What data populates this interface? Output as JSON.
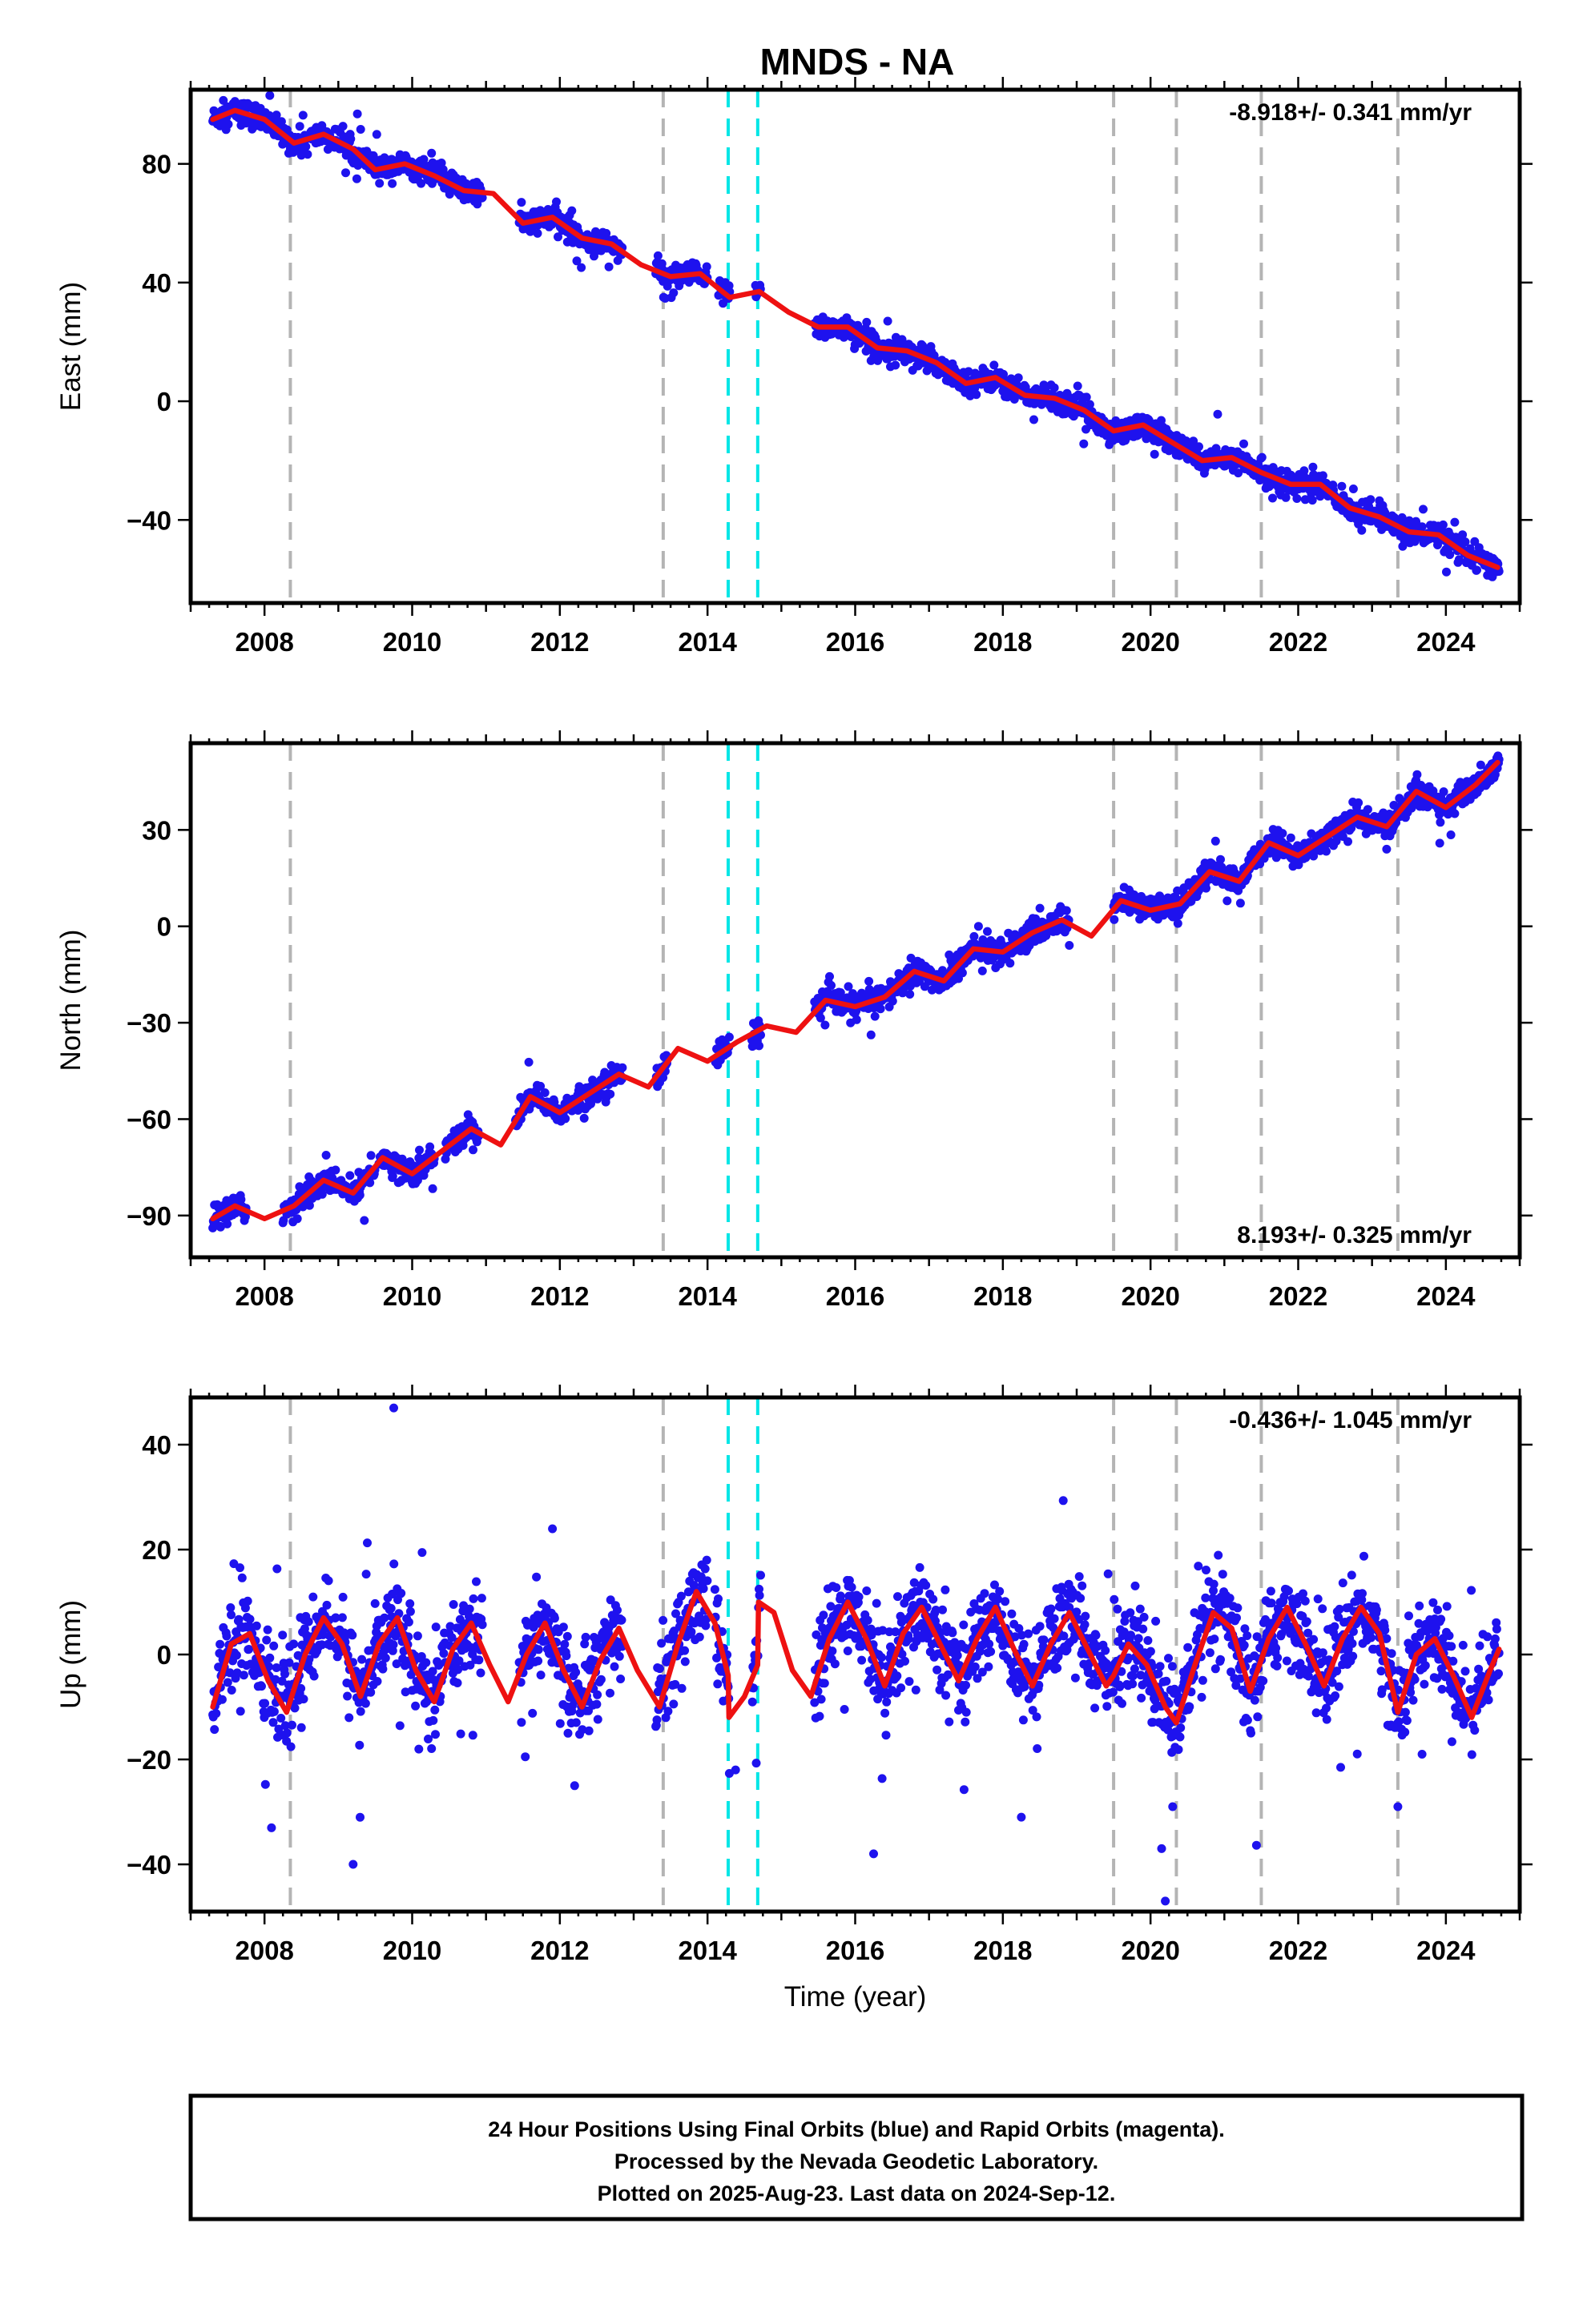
{
  "title": "MNDS - NA",
  "footer": {
    "line1": "24 Hour Positions Using Final Orbits (blue) and Rapid Orbits (magenta).",
    "line2": "Processed by the Nevada Geodetic Laboratory.",
    "line3": "Plotted on 2025-Aug-23. Last data on 2024-Sep-12."
  },
  "colors": {
    "data": "#1e12ee",
    "model": "#ee1111",
    "gray_line": "#b4b4b4",
    "cyan_line": "#00e6e6"
  },
  "chart_data": [
    {
      "type": "scatter",
      "component": "East",
      "ylabel": "East (mm)",
      "xlabel": "",
      "xlim": [
        2007.0,
        2025.0
      ],
      "ylim": [
        -68,
        105
      ],
      "xticks": [
        2008,
        2010,
        2012,
        2014,
        2016,
        2018,
        2020,
        2022,
        2024
      ],
      "yticks": [
        80,
        40,
        0,
        -40
      ],
      "rate_label": "-8.918+/- 0.341 mm/yr",
      "rate_position": "top-right",
      "gray_events": [
        2008.35,
        2013.4,
        2019.5,
        2020.35,
        2021.5,
        2023.35
      ],
      "cyan_events": [
        2014.28,
        2014.68
      ],
      "model": {
        "x": [
          2007.3,
          2007.6,
          2008.0,
          2008.4,
          2008.8,
          2009.2,
          2009.5,
          2009.9,
          2010.3,
          2010.7,
          2011.1,
          2011.5,
          2011.9,
          2012.3,
          2012.7,
          2013.1,
          2013.5,
          2013.9,
          2014.3,
          2014.7,
          2015.1,
          2015.5,
          2015.9,
          2016.3,
          2016.7,
          2017.1,
          2017.5,
          2017.9,
          2018.3,
          2018.7,
          2019.1,
          2019.5,
          2019.9,
          2020.3,
          2020.7,
          2021.1,
          2021.5,
          2021.9,
          2022.3,
          2022.7,
          2023.1,
          2023.5,
          2023.9,
          2024.3,
          2024.7
        ],
        "y": [
          95,
          98,
          95,
          87,
          90,
          85,
          78,
          80,
          76,
          71,
          70,
          60,
          62,
          55,
          53,
          46,
          42,
          43,
          35,
          37,
          30,
          25,
          25,
          18,
          17,
          13,
          6,
          8,
          2,
          1,
          -3,
          -10,
          -8,
          -14,
          -20,
          -19,
          -24,
          -28,
          -28,
          -36,
          -39,
          -44,
          -45,
          -52,
          -56
        ]
      },
      "segments": [
        [
          2007.3,
          2008.9
        ],
        [
          2008.95,
          2010.45
        ],
        [
          2010.5,
          2010.95
        ],
        [
          2011.45,
          2012.85
        ],
        [
          2013.3,
          2014.0
        ],
        [
          2014.15,
          2014.3
        ],
        [
          2014.65,
          2014.72
        ],
        [
          2015.45,
          2024.72
        ]
      ]
    },
    {
      "type": "scatter",
      "component": "North",
      "ylabel": "North (mm)",
      "xlabel": "",
      "xlim": [
        2007.0,
        2025.0
      ],
      "ylim": [
        -103,
        57
      ],
      "xticks": [
        2008,
        2010,
        2012,
        2014,
        2016,
        2018,
        2020,
        2022,
        2024
      ],
      "yticks": [
        30,
        0,
        -30,
        -60,
        -90
      ],
      "rate_label": "8.193+/- 0.325 mm/yr",
      "rate_position": "bottom-right",
      "gray_events": [
        2008.35,
        2013.4,
        2019.5,
        2020.35,
        2021.5,
        2023.35
      ],
      "cyan_events": [
        2014.28,
        2014.68
      ],
      "model": {
        "x": [
          2007.3,
          2007.6,
          2008.0,
          2008.4,
          2008.8,
          2009.2,
          2009.6,
          2010.0,
          2010.4,
          2010.8,
          2011.2,
          2011.6,
          2012.0,
          2012.4,
          2012.8,
          2013.2,
          2013.6,
          2014.0,
          2014.4,
          2014.8,
          2015.2,
          2015.6,
          2016.0,
          2016.4,
          2016.8,
          2017.2,
          2017.6,
          2018.0,
          2018.4,
          2018.8,
          2019.2,
          2019.6,
          2020.0,
          2020.4,
          2020.8,
          2021.2,
          2021.6,
          2022.0,
          2022.4,
          2022.8,
          2023.2,
          2023.6,
          2024.0,
          2024.4,
          2024.7
        ],
        "y": [
          -91,
          -87,
          -91,
          -87,
          -79,
          -83,
          -72,
          -77,
          -70,
          -63,
          -68,
          -53,
          -58,
          -52,
          -46,
          -50,
          -38,
          -42,
          -36,
          -31,
          -33,
          -23,
          -25,
          -22,
          -14,
          -17,
          -7,
          -8,
          -2,
          2,
          -3,
          8,
          5,
          7,
          17,
          14,
          26,
          22,
          28,
          34,
          31,
          42,
          37,
          44,
          51
        ]
      },
      "segments": [
        [
          2007.3,
          2007.75
        ],
        [
          2008.25,
          2009.5
        ],
        [
          2009.55,
          2010.3
        ],
        [
          2010.45,
          2010.9
        ],
        [
          2011.4,
          2012.85
        ],
        [
          2013.3,
          2013.45
        ],
        [
          2014.1,
          2014.3
        ],
        [
          2014.6,
          2014.72
        ],
        [
          2015.45,
          2018.9
        ],
        [
          2019.5,
          2024.72
        ]
      ]
    },
    {
      "type": "scatter",
      "component": "Up",
      "ylabel": "Up (mm)",
      "xlabel": "Time (year)",
      "xlim": [
        2007.0,
        2025.0
      ],
      "ylim": [
        -49,
        49
      ],
      "xticks": [
        2008,
        2010,
        2012,
        2014,
        2016,
        2018,
        2020,
        2022,
        2024
      ],
      "yticks": [
        40,
        20,
        0,
        -20,
        -40
      ],
      "rate_label": "-0.436+/- 1.045 mm/yr",
      "rate_position": "top-right",
      "gray_events": [
        2008.35,
        2013.4,
        2019.5,
        2020.35,
        2021.5,
        2023.35
      ],
      "cyan_events": [
        2014.28,
        2014.68
      ],
      "model": {
        "x": [
          2007.3,
          2007.55,
          2007.8,
          2008.05,
          2008.3,
          2008.55,
          2008.8,
          2009.05,
          2009.3,
          2009.55,
          2009.8,
          2010.05,
          2010.3,
          2010.55,
          2010.8,
          2011.05,
          2011.3,
          2011.55,
          2011.8,
          2012.05,
          2012.3,
          2012.55,
          2012.8,
          2013.05,
          2013.35,
          2013.6,
          2013.85,
          2014.1,
          2014.28,
          2014.29,
          2014.5,
          2014.68,
          2014.69,
          2014.9,
          2015.15,
          2015.4,
          2015.65,
          2015.9,
          2016.15,
          2016.4,
          2016.65,
          2016.9,
          2017.15,
          2017.4,
          2017.65,
          2017.9,
          2018.15,
          2018.4,
          2018.65,
          2018.9,
          2019.15,
          2019.4,
          2019.5,
          2019.7,
          2019.95,
          2020.2,
          2020.35,
          2020.6,
          2020.85,
          2021.1,
          2021.35,
          2021.6,
          2021.85,
          2022.1,
          2022.35,
          2022.6,
          2022.85,
          2023.1,
          2023.35,
          2023.6,
          2023.85,
          2024.1,
          2024.35,
          2024.6,
          2024.72
        ],
        "y": [
          -10,
          2,
          4,
          -5,
          -11,
          0,
          7,
          2,
          -8,
          2,
          7,
          -3,
          -9,
          1,
          6,
          -2,
          -9,
          0,
          6,
          -3,
          -10,
          -1,
          5,
          -3,
          -10,
          2,
          12,
          6,
          -4,
          -12,
          -8,
          -2,
          10,
          8,
          -3,
          -8,
          3,
          10,
          3,
          -6,
          4,
          9,
          2,
          -5,
          3,
          9,
          1,
          -6,
          2,
          8,
          1,
          -6,
          -4,
          2,
          -2,
          -10,
          -13,
          -2,
          8,
          5,
          -7,
          3,
          9,
          2,
          -6,
          3,
          9,
          4,
          -11,
          0,
          3,
          -4,
          -12,
          -3,
          1
        ]
      },
      "outliers": [
        [
          2009.75,
          47
        ],
        [
          2009.2,
          -40
        ],
        [
          2016.25,
          -38
        ],
        [
          2020.2,
          -47
        ],
        [
          2020.3,
          -29
        ],
        [
          2020.15,
          -37
        ],
        [
          2014.38,
          -22
        ],
        [
          2018.25,
          -31
        ],
        [
          2012.2,
          -25
        ],
        [
          2023.35,
          -29
        ]
      ],
      "segments": [
        [
          2007.3,
          2008.9
        ],
        [
          2008.95,
          2010.45
        ],
        [
          2010.5,
          2010.95
        ],
        [
          2011.45,
          2012.85
        ],
        [
          2013.3,
          2014.0
        ],
        [
          2014.1,
          2014.3
        ],
        [
          2014.6,
          2014.72
        ],
        [
          2015.45,
          2024.72
        ]
      ]
    }
  ]
}
